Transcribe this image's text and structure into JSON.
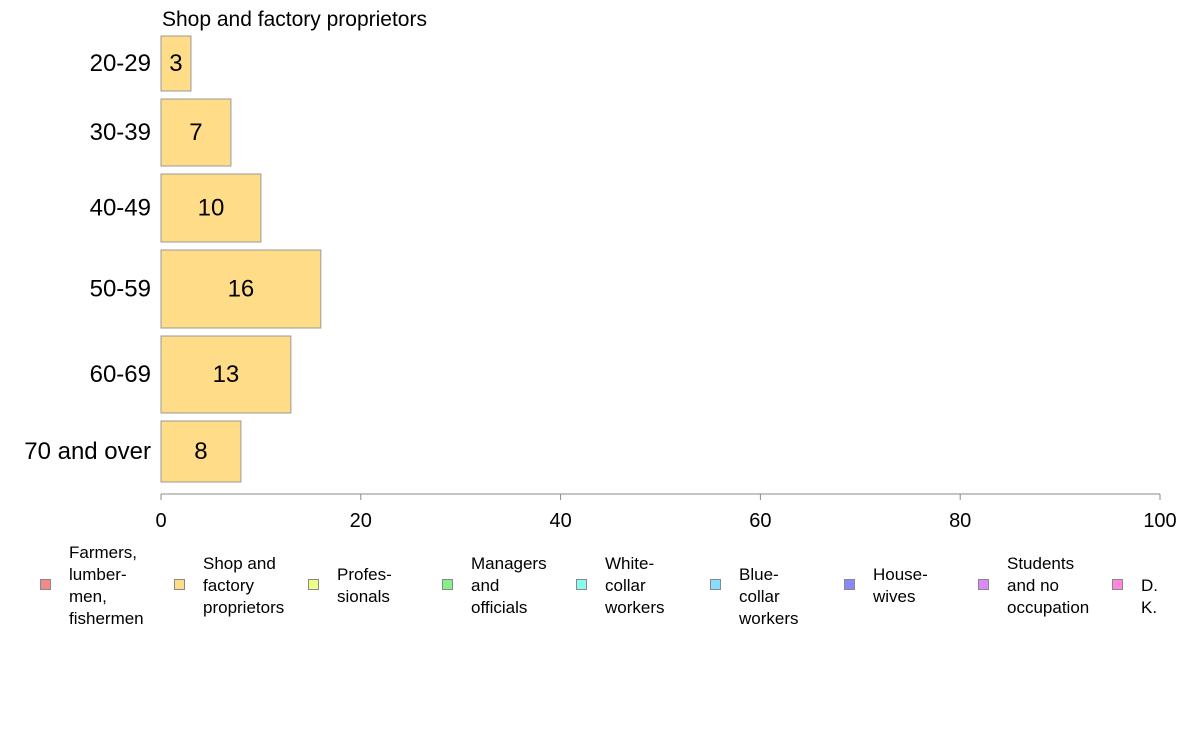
{
  "chart_data": {
    "type": "bar",
    "orientation": "horizontal",
    "title": "Shop and factory proprietors",
    "categories": [
      "20-29",
      "30-39",
      "40-49",
      "50-59",
      "60-69",
      "70 and over"
    ],
    "series": [
      {
        "name": "Shop and factory proprietors",
        "values": [
          3,
          7,
          10,
          16,
          13,
          8
        ],
        "color": "#ffdd88"
      }
    ],
    "xlim": [
      0,
      100
    ],
    "xticks": [
      0,
      20,
      40,
      60,
      80,
      100
    ],
    "grid": false,
    "legend_position": "bottom",
    "legend": [
      {
        "label": "Farmers,\nlumber-\nmen,\nfishermen",
        "color": "#f28a8a"
      },
      {
        "label": "Shop and\nfactory\nproprietors",
        "color": "#ffdd88"
      },
      {
        "label": "Profes-\nsionals",
        "color": "#eeff88"
      },
      {
        "label": "Managers\nand\nofficials",
        "color": "#88ee88"
      },
      {
        "label": "White-\ncollar\nworkers",
        "color": "#88ffee"
      },
      {
        "label": "Blue-collar\nworkers",
        "color": "#88ddff"
      },
      {
        "label": "House-\nwives",
        "color": "#8888ff"
      },
      {
        "label": "Students\nand no\noccupation",
        "color": "#dd88ff"
      },
      {
        "label": "D. K.",
        "color": "#ff88dd"
      }
    ]
  }
}
